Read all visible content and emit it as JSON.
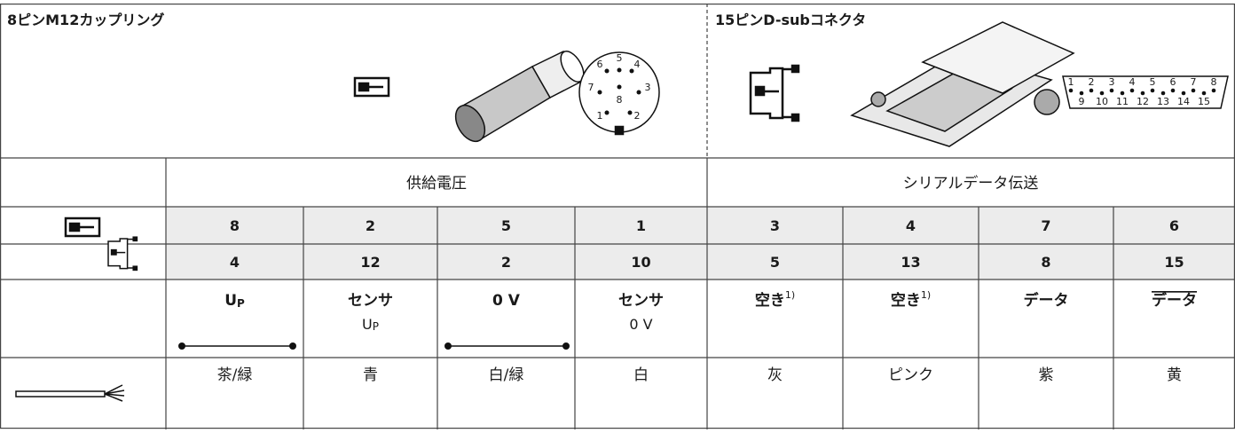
{
  "left_header": {
    "title": "8ピンM12カップリング",
    "pin_labels": [
      "1",
      "2",
      "3",
      "4",
      "5",
      "6",
      "7",
      "8"
    ]
  },
  "right_header": {
    "title": "15ピンD-subコネクタ",
    "pin_labels": [
      "1",
      "2",
      "3",
      "4",
      "5",
      "6",
      "7",
      "8",
      "9",
      "10",
      "11",
      "12",
      "13",
      "14",
      "15"
    ]
  },
  "groups": [
    "供給電圧",
    "シリアルデータ伝送"
  ],
  "m12_pins": [
    "8",
    "2",
    "5",
    "1",
    "3",
    "4",
    "7",
    "6"
  ],
  "dsub_pins": [
    "4",
    "12",
    "2",
    "10",
    "5",
    "13",
    "8",
    "15"
  ],
  "signals": [
    {
      "label": "U",
      "sub": "P"
    },
    {
      "label": "センサ",
      "note": "U",
      "note_sub": "P"
    },
    {
      "label": "0 V"
    },
    {
      "label": "センサ",
      "note": "0 V"
    },
    {
      "label": "空き",
      "sup": "1)"
    },
    {
      "label": "空き",
      "sup": "1)"
    },
    {
      "label": "データ"
    },
    {
      "label": "データ",
      "overline": true
    }
  ],
  "wire_colors": [
    "茶/緑",
    "青",
    "白/緑",
    "白",
    "灰",
    "ピンク",
    "紫",
    "黄"
  ]
}
